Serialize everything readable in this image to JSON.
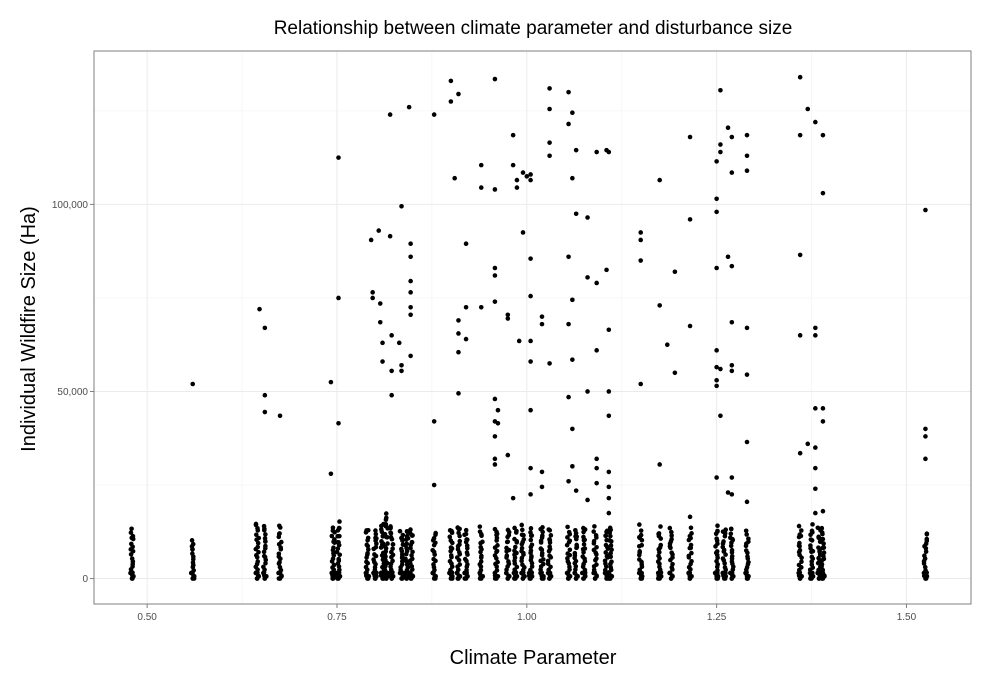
{
  "chart_data": {
    "type": "scatter",
    "title": "Relationship between climate parameter and disturbance size",
    "xlabel": "Climate Parameter",
    "ylabel": "Individual Wildfire Size (Ha)",
    "xlim": [
      0.43,
      1.585
    ],
    "ylim": [
      -6800,
      141000
    ],
    "grid": true,
    "x_ticks": [
      {
        "value": 0.5,
        "label": "0.50"
      },
      {
        "value": 0.75,
        "label": "0.75"
      },
      {
        "value": 1.0,
        "label": "1.00"
      },
      {
        "value": 1.25,
        "label": "1.25"
      },
      {
        "value": 1.5,
        "label": "1.50"
      }
    ],
    "y_ticks": [
      {
        "value": 0,
        "label": "0"
      },
      {
        "value": 50000,
        "label": "50,000"
      },
      {
        "value": 100000,
        "label": "100,000"
      }
    ],
    "point_color": "#000000",
    "low_cluster_columns": [
      {
        "x": 0.48,
        "max": 14000
      },
      {
        "x": 0.56,
        "max": 11000
      },
      {
        "x": 0.645,
        "max": 15500
      },
      {
        "x": 0.655,
        "max": 15000
      },
      {
        "x": 0.675,
        "max": 14500
      },
      {
        "x": 0.745,
        "max": 14500
      },
      {
        "x": 0.752,
        "max": 15500
      },
      {
        "x": 0.79,
        "max": 14000
      },
      {
        "x": 0.8,
        "max": 13500
      },
      {
        "x": 0.81,
        "max": 16000
      },
      {
        "x": 0.815,
        "max": 18000
      },
      {
        "x": 0.822,
        "max": 15000
      },
      {
        "x": 0.835,
        "max": 13500
      },
      {
        "x": 0.842,
        "max": 14000
      },
      {
        "x": 0.848,
        "max": 14000
      },
      {
        "x": 0.878,
        "max": 13000
      },
      {
        "x": 0.9,
        "max": 14000
      },
      {
        "x": 0.91,
        "max": 15000
      },
      {
        "x": 0.92,
        "max": 14000
      },
      {
        "x": 0.94,
        "max": 14000
      },
      {
        "x": 0.96,
        "max": 14500
      },
      {
        "x": 0.975,
        "max": 14000
      },
      {
        "x": 0.985,
        "max": 14000
      },
      {
        "x": 0.995,
        "max": 14500
      },
      {
        "x": 1.005,
        "max": 14000
      },
      {
        "x": 1.02,
        "max": 14500
      },
      {
        "x": 1.03,
        "max": 14000
      },
      {
        "x": 1.055,
        "max": 14000
      },
      {
        "x": 1.065,
        "max": 14000
      },
      {
        "x": 1.075,
        "max": 14500
      },
      {
        "x": 1.09,
        "max": 14000
      },
      {
        "x": 1.105,
        "max": 14000
      },
      {
        "x": 1.11,
        "max": 15000
      },
      {
        "x": 1.15,
        "max": 14500
      },
      {
        "x": 1.175,
        "max": 14000
      },
      {
        "x": 1.19,
        "max": 14000
      },
      {
        "x": 1.215,
        "max": 14000
      },
      {
        "x": 1.25,
        "max": 14500
      },
      {
        "x": 1.26,
        "max": 14000
      },
      {
        "x": 1.27,
        "max": 14500
      },
      {
        "x": 1.29,
        "max": 13000
      },
      {
        "x": 1.36,
        "max": 14500
      },
      {
        "x": 1.375,
        "max": 14500
      },
      {
        "x": 1.385,
        "max": 14000
      },
      {
        "x": 1.39,
        "max": 14000
      },
      {
        "x": 1.525,
        "max": 13000
      }
    ],
    "points": [
      [
        0.56,
        52000
      ],
      [
        0.648,
        72000
      ],
      [
        0.655,
        67000
      ],
      [
        0.655,
        49000
      ],
      [
        0.655,
        44500
      ],
      [
        0.675,
        43500
      ],
      [
        0.742,
        52500
      ],
      [
        0.742,
        28000
      ],
      [
        0.752,
        112500
      ],
      [
        0.752,
        75000
      ],
      [
        0.752,
        41500
      ],
      [
        0.795,
        90500
      ],
      [
        0.797,
        76500
      ],
      [
        0.797,
        75000
      ],
      [
        0.805,
        93000
      ],
      [
        0.807,
        73500
      ],
      [
        0.807,
        68500
      ],
      [
        0.81,
        63000
      ],
      [
        0.81,
        58000
      ],
      [
        0.82,
        124000
      ],
      [
        0.82,
        91500
      ],
      [
        0.822,
        65000
      ],
      [
        0.822,
        55500
      ],
      [
        0.822,
        49000
      ],
      [
        0.832,
        63000
      ],
      [
        0.835,
        99500
      ],
      [
        0.835,
        57000
      ],
      [
        0.835,
        55500
      ],
      [
        0.845,
        126000
      ],
      [
        0.847,
        89500
      ],
      [
        0.847,
        86000
      ],
      [
        0.847,
        79500
      ],
      [
        0.847,
        76500
      ],
      [
        0.847,
        72500
      ],
      [
        0.847,
        70500
      ],
      [
        0.847,
        59500
      ],
      [
        0.878,
        124000
      ],
      [
        0.878,
        42000
      ],
      [
        0.878,
        25000
      ],
      [
        0.9,
        133000
      ],
      [
        0.9,
        127500
      ],
      [
        0.905,
        107000
      ],
      [
        0.91,
        129500
      ],
      [
        0.91,
        69000
      ],
      [
        0.91,
        65500
      ],
      [
        0.91,
        60500
      ],
      [
        0.91,
        49500
      ],
      [
        0.92,
        89500
      ],
      [
        0.92,
        72500
      ],
      [
        0.92,
        64000
      ],
      [
        0.94,
        110500
      ],
      [
        0.94,
        104500
      ],
      [
        0.94,
        72500
      ],
      [
        0.958,
        133500
      ],
      [
        0.958,
        104000
      ],
      [
        0.958,
        83000
      ],
      [
        0.958,
        81000
      ],
      [
        0.958,
        74000
      ],
      [
        0.958,
        48000
      ],
      [
        0.958,
        42000
      ],
      [
        0.958,
        38000
      ],
      [
        0.958,
        32000
      ],
      [
        0.958,
        30500
      ],
      [
        0.962,
        45000
      ],
      [
        0.962,
        41500
      ],
      [
        0.975,
        70500
      ],
      [
        0.975,
        69500
      ],
      [
        0.975,
        33000
      ],
      [
        0.982,
        118500
      ],
      [
        0.982,
        110500
      ],
      [
        0.982,
        21500
      ],
      [
        0.987,
        106500
      ],
      [
        0.987,
        104500
      ],
      [
        0.99,
        63500
      ],
      [
        0.995,
        92500
      ],
      [
        0.995,
        108500
      ],
      [
        1.0,
        107500
      ],
      [
        1.005,
        108000
      ],
      [
        1.005,
        106500
      ],
      [
        1.005,
        85500
      ],
      [
        1.005,
        75500
      ],
      [
        1.005,
        63500
      ],
      [
        1.005,
        58000
      ],
      [
        1.005,
        45000
      ],
      [
        1.005,
        29500
      ],
      [
        1.005,
        22500
      ],
      [
        1.02,
        70000
      ],
      [
        1.02,
        68000
      ],
      [
        1.02,
        28500
      ],
      [
        1.02,
        24500
      ],
      [
        1.03,
        131000
      ],
      [
        1.03,
        125500
      ],
      [
        1.03,
        116500
      ],
      [
        1.03,
        113000
      ],
      [
        1.03,
        57500
      ],
      [
        1.055,
        130000
      ],
      [
        1.055,
        121500
      ],
      [
        1.055,
        86000
      ],
      [
        1.055,
        68000
      ],
      [
        1.055,
        48500
      ],
      [
        1.055,
        26000
      ],
      [
        1.06,
        124500
      ],
      [
        1.06,
        107000
      ],
      [
        1.06,
        74500
      ],
      [
        1.06,
        58500
      ],
      [
        1.06,
        40000
      ],
      [
        1.06,
        30000
      ],
      [
        1.065,
        114500
      ],
      [
        1.065,
        97500
      ],
      [
        1.065,
        23500
      ],
      [
        1.08,
        96500
      ],
      [
        1.08,
        80500
      ],
      [
        1.08,
        50000
      ],
      [
        1.08,
        21000
      ],
      [
        1.092,
        114000
      ],
      [
        1.092,
        79000
      ],
      [
        1.092,
        61000
      ],
      [
        1.092,
        32000
      ],
      [
        1.092,
        29500
      ],
      [
        1.092,
        25500
      ],
      [
        1.105,
        114500
      ],
      [
        1.105,
        82500
      ],
      [
        1.108,
        114000
      ],
      [
        1.108,
        66500
      ],
      [
        1.108,
        50000
      ],
      [
        1.108,
        43500
      ],
      [
        1.108,
        28500
      ],
      [
        1.108,
        24500
      ],
      [
        1.108,
        21500
      ],
      [
        1.108,
        17500
      ],
      [
        1.15,
        92500
      ],
      [
        1.15,
        90500
      ],
      [
        1.15,
        85000
      ],
      [
        1.15,
        52000
      ],
      [
        1.175,
        106500
      ],
      [
        1.175,
        73000
      ],
      [
        1.175,
        30500
      ],
      [
        1.185,
        62500
      ],
      [
        1.195,
        82000
      ],
      [
        1.195,
        55000
      ],
      [
        1.215,
        118000
      ],
      [
        1.215,
        96000
      ],
      [
        1.215,
        67500
      ],
      [
        1.215,
        16500
      ],
      [
        1.25,
        111500
      ],
      [
        1.25,
        101500
      ],
      [
        1.25,
        98000
      ],
      [
        1.25,
        83000
      ],
      [
        1.25,
        61000
      ],
      [
        1.25,
        56500
      ],
      [
        1.25,
        53000
      ],
      [
        1.25,
        51500
      ],
      [
        1.25,
        27000
      ],
      [
        1.255,
        130500
      ],
      [
        1.255,
        116000
      ],
      [
        1.255,
        114000
      ],
      [
        1.255,
        56000
      ],
      [
        1.255,
        43500
      ],
      [
        1.265,
        120500
      ],
      [
        1.265,
        86000
      ],
      [
        1.265,
        23000
      ],
      [
        1.27,
        118000
      ],
      [
        1.27,
        108500
      ],
      [
        1.27,
        83500
      ],
      [
        1.27,
        68500
      ],
      [
        1.27,
        57000
      ],
      [
        1.27,
        55500
      ],
      [
        1.27,
        27000
      ],
      [
        1.27,
        22500
      ],
      [
        1.29,
        118500
      ],
      [
        1.29,
        113000
      ],
      [
        1.29,
        109000
      ],
      [
        1.29,
        67000
      ],
      [
        1.29,
        54500
      ],
      [
        1.29,
        36500
      ],
      [
        1.29,
        20500
      ],
      [
        1.36,
        134000
      ],
      [
        1.36,
        118500
      ],
      [
        1.36,
        86500
      ],
      [
        1.36,
        65000
      ],
      [
        1.36,
        33500
      ],
      [
        1.37,
        125500
      ],
      [
        1.37,
        36000
      ],
      [
        1.38,
        122000
      ],
      [
        1.38,
        67000
      ],
      [
        1.38,
        65000
      ],
      [
        1.38,
        45500
      ],
      [
        1.38,
        35000
      ],
      [
        1.38,
        29500
      ],
      [
        1.38,
        24000
      ],
      [
        1.38,
        17500
      ],
      [
        1.39,
        118500
      ],
      [
        1.39,
        103000
      ],
      [
        1.39,
        45500
      ],
      [
        1.39,
        42000
      ],
      [
        1.39,
        18000
      ],
      [
        1.525,
        98500
      ],
      [
        1.525,
        40000
      ],
      [
        1.525,
        38000
      ],
      [
        1.525,
        32000
      ]
    ]
  }
}
